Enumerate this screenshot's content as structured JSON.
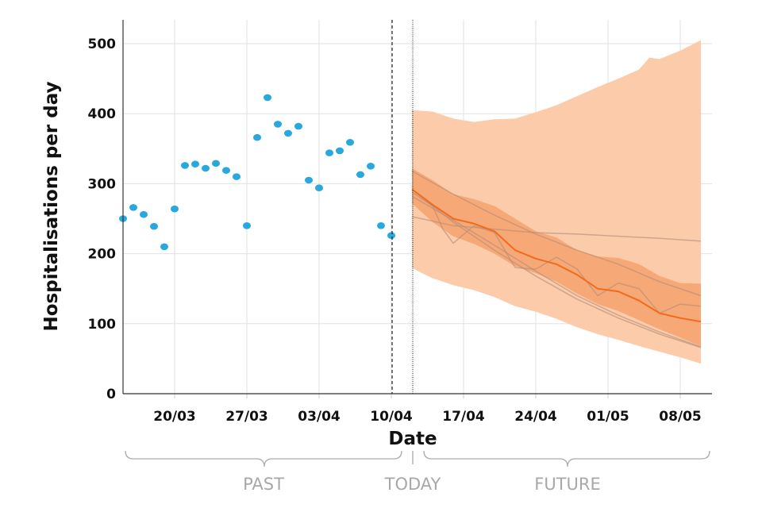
{
  "chart_data": {
    "type": "scatter+line+area",
    "xlabel": "Date",
    "ylabel": "Hospitalisations per day",
    "ylim": [
      0,
      530
    ],
    "xlim": [
      "15/03",
      "10/05"
    ],
    "yticks": [
      "0",
      "100",
      "200",
      "300",
      "400",
      "500"
    ],
    "xticks": [
      "20/03",
      "27/03",
      "03/04",
      "10/04",
      "17/04",
      "24/04",
      "01/05",
      "08/05"
    ],
    "grid": true,
    "colors": {
      "observed": "#29a8e0",
      "median": "#f26a1b",
      "outer_band": "#fbcbaa",
      "inner_band": "#f7a877",
      "scenario": "#b08c78"
    },
    "observed": {
      "x": [
        "15/03",
        "16/03",
        "17/03",
        "18/03",
        "19/03",
        "20/03",
        "21/03",
        "22/03",
        "23/03",
        "24/03",
        "25/03",
        "26/03",
        "27/03",
        "28/03",
        "29/03",
        "30/03",
        "31/03",
        "01/04",
        "02/04",
        "03/04",
        "04/04",
        "05/04",
        "06/04",
        "07/04",
        "08/04",
        "09/04",
        "10/04"
      ],
      "y": [
        250,
        266,
        256,
        239,
        210,
        264,
        326,
        328,
        322,
        329,
        319,
        310,
        240,
        366,
        423,
        385,
        372,
        382,
        305,
        294,
        344,
        347,
        359,
        313,
        325,
        240,
        226
      ]
    },
    "forecast": {
      "median": {
        "x": [
          "12/04",
          "14/04",
          "16/04",
          "18/04",
          "20/04",
          "22/04",
          "24/04",
          "26/04",
          "28/04",
          "30/04",
          "02/05",
          "04/05",
          "06/05",
          "08/05",
          "10/05"
        ],
        "y": [
          292,
          270,
          250,
          243,
          232,
          205,
          193,
          185,
          170,
          150,
          146,
          133,
          115,
          108,
          103
        ]
      },
      "outer_upper": {
        "x": [
          "12/04",
          "14/04",
          "16/04",
          "18/04",
          "20/04",
          "22/04",
          "24/04",
          "26/04",
          "28/04",
          "30/04",
          "02/05",
          "04/05",
          "05/05",
          "06/05",
          "08/05",
          "10/05"
        ],
        "y": [
          405,
          403,
          393,
          388,
          392,
          393,
          402,
          412,
          425,
          438,
          450,
          463,
          480,
          478,
          490,
          505
        ]
      },
      "outer_lower": {
        "x": [
          "12/04",
          "13/04",
          "14/04",
          "16/04",
          "18/04",
          "20/04",
          "22/04",
          "24/04",
          "26/04",
          "28/04",
          "30/04",
          "02/05",
          "04/05",
          "06/05",
          "08/05",
          "10/05"
        ],
        "y": [
          180,
          172,
          165,
          155,
          148,
          138,
          125,
          117,
          107,
          95,
          85,
          77,
          68,
          60,
          52,
          43
        ]
      },
      "inner_upper": {
        "x": [
          "12/04",
          "14/04",
          "16/04",
          "18/04",
          "20/04",
          "22/04",
          "24/04",
          "26/04",
          "28/04",
          "30/04",
          "02/05",
          "04/05",
          "06/05",
          "08/05",
          "10/05"
        ],
        "y": [
          322,
          305,
          285,
          278,
          268,
          250,
          232,
          223,
          205,
          196,
          194,
          185,
          168,
          158,
          157
        ]
      },
      "inner_lower": {
        "x": [
          "12/04",
          "14/04",
          "16/04",
          "18/04",
          "20/04",
          "22/04",
          "24/04",
          "26/04",
          "28/04",
          "30/04",
          "02/05",
          "04/05",
          "06/05",
          "08/05",
          "10/05"
        ],
        "y": [
          272,
          245,
          225,
          214,
          200,
          182,
          172,
          160,
          143,
          128,
          118,
          105,
          92,
          80,
          68
        ]
      },
      "scenarios": [
        {
          "x": [
            "12/04",
            "16/04",
            "20/04",
            "24/04",
            "28/04",
            "02/05",
            "06/05",
            "10/05"
          ],
          "y": [
            253,
            240,
            235,
            230,
            228,
            225,
            222,
            218
          ]
        },
        {
          "x": [
            "12/04",
            "16/04",
            "20/04",
            "24/04",
            "28/04",
            "02/05",
            "06/05",
            "10/05"
          ],
          "y": [
            318,
            285,
            255,
            228,
            205,
            185,
            160,
            140
          ]
        },
        {
          "x": [
            "12/04",
            "14/04",
            "15/04",
            "16/04",
            "18/04",
            "20/04",
            "22/04",
            "24/04",
            "26/04",
            "28/04",
            "30/04",
            "02/05",
            "04/05",
            "06/05",
            "08/05",
            "10/05"
          ],
          "y": [
            288,
            268,
            235,
            215,
            240,
            230,
            180,
            178,
            195,
            178,
            140,
            158,
            150,
            115,
            128,
            125
          ]
        },
        {
          "x": [
            "12/04",
            "16/04",
            "20/04",
            "24/04",
            "28/04",
            "02/05",
            "06/05",
            "10/05"
          ],
          "y": [
            282,
            248,
            212,
            175,
            140,
            112,
            88,
            67
          ]
        },
        {
          "x": [
            "12/04",
            "16/04",
            "20/04",
            "24/04",
            "28/04",
            "02/05",
            "06/05",
            "10/05"
          ],
          "y": [
            292,
            245,
            205,
            168,
            135,
            108,
            85,
            66
          ]
        }
      ]
    },
    "markers": {
      "last_observed": "10/04",
      "forecast_start": "12/04"
    },
    "annotations": {
      "past": "PAST",
      "today": "TODAY",
      "future": "FUTURE"
    }
  }
}
